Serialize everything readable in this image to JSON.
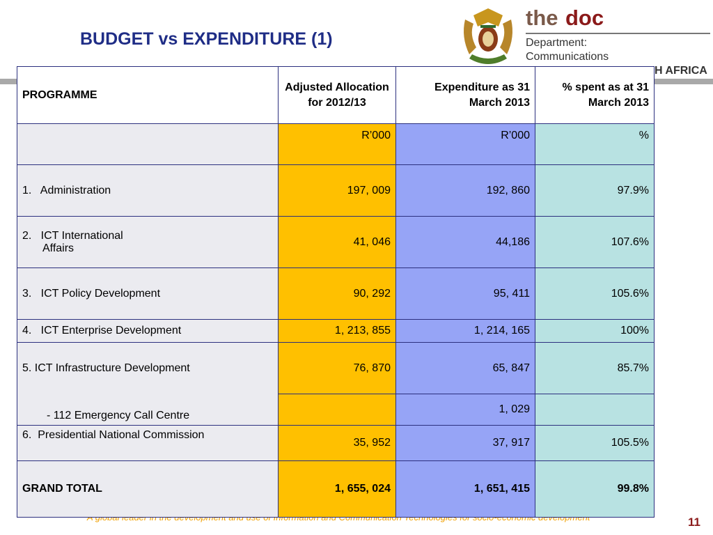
{
  "header": {
    "title": "BUDGET vs EXPENDITURE (1)",
    "logo": {
      "prefix": "the",
      "brand": "doc",
      "department": "Department:",
      "name": "Communications",
      "country": "H AFRICA"
    }
  },
  "table": {
    "columns": [
      "PROGRAMME",
      "Adjusted Allocation for 2012/13",
      "Expenditure as 31 March 2013",
      "% spent as at 31 March 2013"
    ],
    "units": [
      "R’000",
      "R’000",
      "%"
    ],
    "rows": [
      {
        "programme": "1.   Administration",
        "allocation": "197, 009",
        "expenditure": "192, 860",
        "spent": "97.9%"
      },
      {
        "programme": "2.   ICT International",
        "programme_cont": "Affairs",
        "allocation": "41, 046",
        "expenditure": "44,186",
        "spent": "107.6%"
      },
      {
        "programme": "3.   ICT Policy Development",
        "allocation": "90, 292",
        "expenditure": "95, 411",
        "spent": "105.6%"
      },
      {
        "programme": "4.   ICT Enterprise Development",
        "allocation": "1, 213, 855",
        "expenditure": "1, 214, 165",
        "spent": "100%"
      },
      {
        "programme": "5. ICT Infrastructure Development",
        "allocation": "76, 870",
        "expenditure": "65, 847",
        "spent": "85.7%"
      },
      {
        "programme": "- 112 Emergency Call Centre",
        "expenditure": "1, 029"
      },
      {
        "programme": "6.  Presidential National Commission",
        "allocation": "35, 952",
        "expenditure": "37, 917",
        "spent": "105.5%"
      },
      {
        "programme": "GRAND TOTAL",
        "allocation": "1, 655, 024",
        "expenditure": "1, 651, 415",
        "spent": "99.8%",
        "bold": true
      }
    ]
  },
  "footer": {
    "tagline": "A global leader in the development and use of Information and Communication Technologies for socio-economic development",
    "page": "11"
  }
}
